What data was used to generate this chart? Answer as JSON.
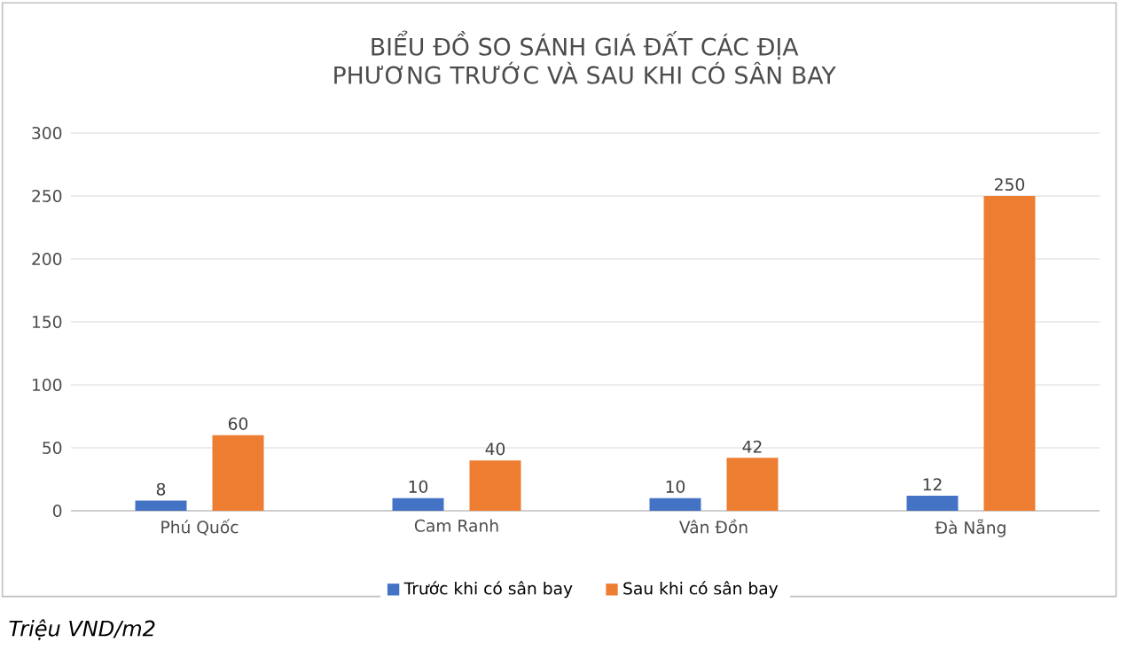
{
  "chart_data": {
    "type": "bar",
    "title": "BIỂU ĐỒ SO SÁNH GIÁ ĐẤT CÁC ĐỊA PHƯƠNG TRƯỚC VÀ SAU KHI CÓ SÂN BAY",
    "categories": [
      "Phú Quốc",
      "Cam Ranh",
      "Vân Đồn",
      "Đà Nẵng"
    ],
    "series": [
      {
        "name": "Trước khi có sân bay",
        "color": "#4472c4",
        "values": [
          8,
          10,
          10,
          12
        ]
      },
      {
        "name": "Sau khi có sân bay",
        "color": "#ed7d31",
        "values": [
          60,
          40,
          42,
          250
        ]
      }
    ],
    "ylim": [
      0,
      300
    ],
    "yticks": [
      0,
      50,
      100,
      150,
      200,
      250,
      300
    ],
    "grid": "y",
    "legend": "bottom",
    "data_labels": true,
    "annotations": [
      "Triệu VND/m2"
    ]
  }
}
